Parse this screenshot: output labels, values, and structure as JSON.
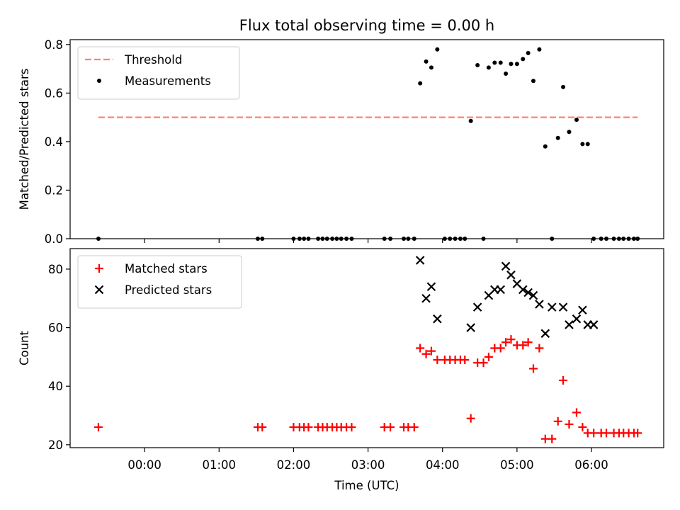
{
  "figure_title": "Flux total observing time = 0.00 h",
  "chart_data": [
    {
      "type": "scatter",
      "title": "Flux total observing time = 0.00 h",
      "xlabel": "",
      "ylabel": "Matched/Predicted stars",
      "x_unit": "hours (UTC, relative to 00:00)",
      "xlim": [
        -1.0,
        6.97
      ],
      "ylim": [
        0.0,
        0.82
      ],
      "yticks": [
        0.0,
        0.2,
        0.4,
        0.6,
        0.8
      ],
      "ytick_labels": [
        "0.0",
        "0.2",
        "0.4",
        "0.6",
        "0.8"
      ],
      "xticks": [
        0,
        1,
        2,
        3,
        4,
        5,
        6
      ],
      "xtick_labels": [
        "",
        "",
        "",
        "",
        "",
        "",
        ""
      ],
      "grid": false,
      "legend_position": "upper-left",
      "threshold": {
        "name": "Threshold",
        "y": 0.5,
        "x_range": [
          -0.62,
          6.62
        ],
        "color": "#ff7f7f",
        "style": "dashed"
      },
      "series": [
        {
          "name": "Measurements",
          "marker": "dot",
          "color": "#000000",
          "x": [
            -0.62,
            1.52,
            1.58,
            2.0,
            2.08,
            2.14,
            2.2,
            2.33,
            2.39,
            2.45,
            2.52,
            2.58,
            2.64,
            2.71,
            2.78,
            3.22,
            3.3,
            3.48,
            3.54,
            3.62,
            3.7,
            3.78,
            3.85,
            3.93,
            4.03,
            4.1,
            4.17,
            4.24,
            4.3,
            4.38,
            4.47,
            4.55,
            4.62,
            4.7,
            4.78,
            4.85,
            4.92,
            5.0,
            5.08,
            5.15,
            5.22,
            5.3,
            5.38,
            5.47,
            5.55,
            5.62,
            5.7,
            5.8,
            5.88,
            5.95,
            6.03,
            6.13,
            6.2,
            6.3,
            6.37,
            6.43,
            6.5,
            6.57,
            6.62
          ],
          "y": [
            0.0,
            0.0,
            0.0,
            0.0,
            0.0,
            0.0,
            0.0,
            0.0,
            0.0,
            0.0,
            0.0,
            0.0,
            0.0,
            0.0,
            0.0,
            0.0,
            0.0,
            0.0,
            0.0,
            0.0,
            0.64,
            0.73,
            0.705,
            0.78,
            0.0,
            0.0,
            0.0,
            0.0,
            0.0,
            0.485,
            0.715,
            0.0,
            0.705,
            0.725,
            0.725,
            0.68,
            0.72,
            0.72,
            0.74,
            0.765,
            0.65,
            0.78,
            0.38,
            0.0,
            0.415,
            0.625,
            0.44,
            0.49,
            0.39,
            0.39,
            0.0,
            0.0,
            0.0,
            0.0,
            0.0,
            0.0,
            0.0,
            0.0,
            0.0
          ]
        }
      ]
    },
    {
      "type": "scatter",
      "title": "",
      "xlabel": "Time (UTC)",
      "ylabel": "Count",
      "x_unit": "hours (UTC, relative to 00:00)",
      "xlim": [
        -1.0,
        6.97
      ],
      "ylim": [
        19.0,
        87.0
      ],
      "yticks": [
        20,
        40,
        60,
        80
      ],
      "ytick_labels": [
        "20",
        "40",
        "60",
        "80"
      ],
      "xticks": [
        0,
        1,
        2,
        3,
        4,
        5,
        6
      ],
      "xtick_labels": [
        "00:00",
        "01:00",
        "02:00",
        "03:00",
        "04:00",
        "05:00",
        "06:00"
      ],
      "grid": false,
      "legend_position": "upper-left",
      "series": [
        {
          "name": "Matched stars",
          "marker": "plus",
          "color": "#ff0000",
          "x": [
            -0.62,
            1.52,
            1.58,
            2.0,
            2.08,
            2.14,
            2.2,
            2.33,
            2.39,
            2.45,
            2.52,
            2.58,
            2.64,
            2.71,
            2.78,
            3.22,
            3.3,
            3.48,
            3.54,
            3.62,
            3.7,
            3.78,
            3.85,
            3.93,
            4.03,
            4.1,
            4.17,
            4.24,
            4.3,
            4.38,
            4.47,
            4.55,
            4.62,
            4.7,
            4.78,
            4.85,
            4.92,
            5.0,
            5.08,
            5.15,
            5.22,
            5.3,
            5.38,
            5.47,
            5.55,
            5.62,
            5.7,
            5.8,
            5.88,
            5.95,
            6.03,
            6.13,
            6.2,
            6.3,
            6.37,
            6.43,
            6.5,
            6.57,
            6.62
          ],
          "y": [
            26,
            26,
            26,
            26,
            26,
            26,
            26,
            26,
            26,
            26,
            26,
            26,
            26,
            26,
            26,
            26,
            26,
            26,
            26,
            26,
            53,
            51,
            52,
            49,
            49,
            49,
            49,
            49,
            49,
            29,
            48,
            48,
            50,
            53,
            53,
            55,
            56,
            54,
            54,
            55,
            46,
            53,
            22,
            22,
            28,
            42,
            27,
            31,
            26,
            24,
            24,
            24,
            24,
            24,
            24,
            24,
            24,
            24,
            24
          ]
        },
        {
          "name": "Predicted stars",
          "marker": "x",
          "color": "#000000",
          "x": [
            3.7,
            3.78,
            3.85,
            3.93,
            4.38,
            4.47,
            4.62,
            4.7,
            4.78,
            4.85,
            4.92,
            5.0,
            5.08,
            5.15,
            5.22,
            5.3,
            5.38,
            5.47,
            5.62,
            5.7,
            5.8,
            5.88,
            5.95,
            6.03
          ],
          "y": [
            83,
            70,
            74,
            63,
            60,
            67,
            71,
            73,
            73,
            81,
            78,
            75,
            73,
            72,
            71,
            68,
            58,
            67,
            67,
            61,
            63,
            66,
            61,
            61
          ]
        }
      ]
    }
  ]
}
